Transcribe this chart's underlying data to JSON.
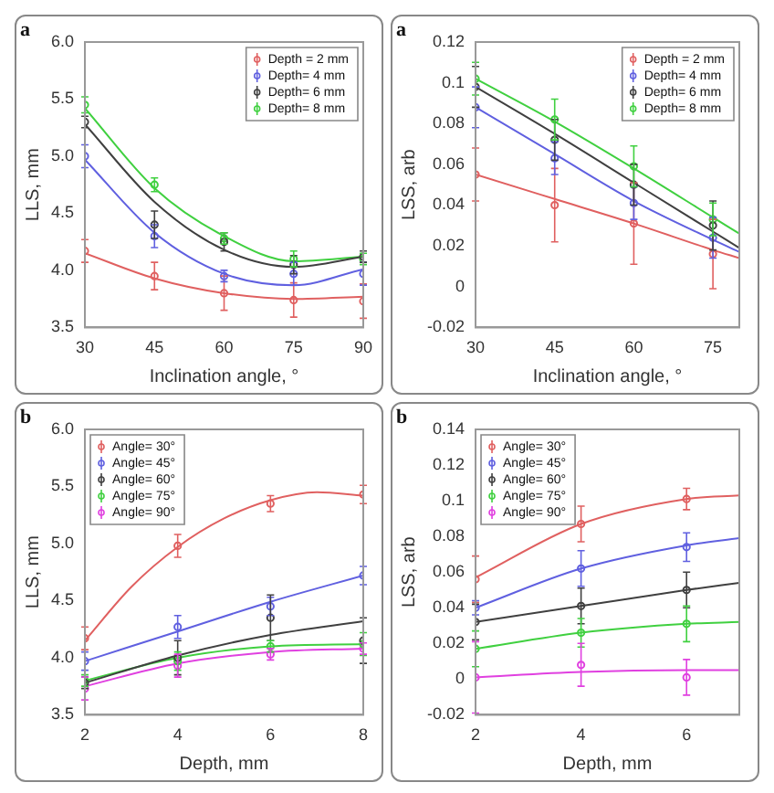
{
  "chart_data": [
    {
      "type": "scatter",
      "title": "a",
      "xlabel": "Inclination angle, °",
      "ylabel": "LLS, mm",
      "x": [
        30,
        45,
        60,
        75,
        90
      ],
      "xlim": [
        30,
        90
      ],
      "xticks": [
        30,
        45,
        60,
        75,
        90
      ],
      "ylim": [
        3.5,
        6.0
      ],
      "yticks": [
        {
          "value": 3.5,
          "label": "3.5"
        },
        {
          "value": 4,
          "label": "4.0"
        },
        {
          "value": 4.5,
          "label": "4.5"
        },
        {
          "value": 5,
          "label": "5.0"
        },
        {
          "value": 5.5,
          "label": "5.5"
        },
        {
          "value": 6,
          "label": "6.0"
        }
      ],
      "legend": "top right",
      "series": [
        {
          "name": "Depth = 2 mm",
          "color": "#e06060",
          "values": [
            4.17,
            3.95,
            3.8,
            3.74,
            3.73
          ],
          "errors": [
            0.1,
            0.12,
            0.15,
            0.15,
            0.15
          ]
        },
        {
          "name": "Depth= 4 mm",
          "color": "#6060e0",
          "values": [
            5.0,
            4.3,
            3.95,
            3.97,
            3.97
          ],
          "errors": [
            0.1,
            0.1,
            0.05,
            0.1,
            0.1
          ]
        },
        {
          "name": "Depth= 6 mm",
          "color": "#404040",
          "values": [
            5.3,
            4.4,
            4.25,
            4.05,
            4.12
          ],
          "errors": [
            0.05,
            0.12,
            0.08,
            0.08,
            0.05
          ]
        },
        {
          "name": "Depth= 8 mm",
          "color": "#40d040",
          "values": [
            5.45,
            4.75,
            4.28,
            4.1,
            4.1
          ],
          "errors": [
            0.07,
            0.06,
            0.05,
            0.07,
            0.05
          ]
        },
        {
          "type": "line",
          "color": "#e06060",
          "x": [
            30,
            45,
            60,
            75,
            90
          ],
          "values": [
            4.15,
            3.93,
            3.8,
            3.75,
            3.77
          ]
        },
        {
          "type": "line",
          "color": "#6060e0",
          "x": [
            30,
            45,
            60,
            75,
            90
          ],
          "values": [
            4.97,
            4.33,
            3.97,
            3.87,
            4.01
          ]
        },
        {
          "type": "line",
          "color": "#404040",
          "x": [
            30,
            45,
            60,
            75,
            90
          ],
          "values": [
            5.28,
            4.6,
            4.18,
            4.03,
            4.12
          ]
        },
        {
          "type": "line",
          "color": "#40d040",
          "x": [
            30,
            45,
            60,
            75,
            90
          ],
          "values": [
            5.42,
            4.72,
            4.3,
            4.08,
            4.12
          ]
        }
      ]
    },
    {
      "type": "scatter",
      "title": "a",
      "xlabel": "Inclination angle, °",
      "ylabel": "LSS, arb",
      "x": [
        30,
        45,
        60,
        75
      ],
      "xlim": [
        30,
        80
      ],
      "xticks": [
        30,
        45,
        60,
        75
      ],
      "ylim": [
        -0.02,
        0.12
      ],
      "yticks": [
        -0.02,
        0,
        0.02,
        0.04,
        0.06,
        0.08,
        0.1,
        0.12
      ],
      "legend": "top right",
      "series": [
        {
          "name": "Depth = 2 mm",
          "color": "#e06060",
          "values": [
            0.055,
            0.04,
            0.031,
            0.016
          ],
          "errors": [
            0.013,
            0.018,
            0.02,
            0.017
          ]
        },
        {
          "name": "Depth= 4 mm",
          "color": "#6060e0",
          "values": [
            0.088,
            0.063,
            0.041,
            0.024
          ],
          "errors": [
            0.01,
            0.008,
            0.008,
            0.01
          ]
        },
        {
          "name": "Depth= 6 mm",
          "color": "#404040",
          "values": [
            0.098,
            0.072,
            0.05,
            0.03
          ],
          "errors": [
            0.01,
            0.01,
            0.01,
            0.012
          ]
        },
        {
          "name": "Depth= 8 mm",
          "color": "#40d040",
          "values": [
            0.102,
            0.082,
            0.059,
            0.033
          ],
          "errors": [
            0.008,
            0.01,
            0.01,
            0.008
          ]
        },
        {
          "type": "line",
          "color": "#e06060",
          "x": [
            30,
            45,
            60,
            75,
            80
          ],
          "values": [
            0.055,
            0.043,
            0.031,
            0.018,
            0.014
          ]
        },
        {
          "type": "line",
          "color": "#6060e0",
          "x": [
            30,
            45,
            60,
            75,
            80
          ],
          "values": [
            0.088,
            0.065,
            0.042,
            0.023,
            0.017
          ]
        },
        {
          "type": "line",
          "color": "#404040",
          "x": [
            30,
            45,
            60,
            75,
            80
          ],
          "values": [
            0.098,
            0.075,
            0.051,
            0.027,
            0.019
          ]
        },
        {
          "type": "line",
          "color": "#40d040",
          "x": [
            30,
            45,
            60,
            75,
            80
          ],
          "values": [
            0.102,
            0.081,
            0.058,
            0.034,
            0.026
          ]
        }
      ]
    },
    {
      "type": "scatter",
      "title": "b",
      "xlabel": "Depth, mm",
      "ylabel": "LLS, mm",
      "x": [
        2,
        4,
        6,
        8
      ],
      "xlim": [
        2,
        8
      ],
      "xticks": [
        2,
        4,
        6,
        8
      ],
      "ylim": [
        3.5,
        6.0
      ],
      "yticks": [
        {
          "value": 3.5,
          "label": "3.5"
        },
        {
          "value": 4,
          "label": "4.0"
        },
        {
          "value": 4.5,
          "label": "4.5"
        },
        {
          "value": 5,
          "label": "5.0"
        },
        {
          "value": 5.5,
          "label": "5.5"
        },
        {
          "value": 6,
          "label": "6.0"
        }
      ],
      "legend": "top left",
      "series": [
        {
          "name": "Angle= 30°",
          "color": "#e06060",
          "values": [
            4.17,
            4.98,
            5.35,
            5.43
          ],
          "errors": [
            0.1,
            0.1,
            0.07,
            0.08
          ]
        },
        {
          "name": "Angle= 45°",
          "color": "#6060e0",
          "values": [
            3.97,
            4.27,
            4.45,
            4.72
          ],
          "errors": [
            0.08,
            0.1,
            0.08,
            0.08
          ]
        },
        {
          "name": "Angle= 60°",
          "color": "#404040",
          "values": [
            3.78,
            4.0,
            4.35,
            4.15
          ],
          "errors": [
            0.05,
            0.15,
            0.2,
            0.2
          ]
        },
        {
          "name": "Angle= 75°",
          "color": "#40d040",
          "values": [
            3.8,
            3.97,
            4.1,
            4.12
          ],
          "errors": [
            0.05,
            0.08,
            0.05,
            0.1
          ]
        },
        {
          "name": "Angle= 90°",
          "color": "#e040e0",
          "values": [
            3.73,
            3.93,
            4.03,
            4.08
          ],
          "errors": [
            0.1,
            0.1,
            0.05,
            0.05
          ]
        },
        {
          "type": "line",
          "color": "#e06060",
          "x": [
            2,
            3,
            4,
            5,
            6,
            7,
            8
          ],
          "values": [
            4.15,
            4.62,
            4.97,
            5.22,
            5.38,
            5.45,
            5.42
          ]
        },
        {
          "type": "line",
          "color": "#6060e0",
          "x": [
            2,
            4,
            6,
            8
          ],
          "values": [
            3.97,
            4.23,
            4.49,
            4.72
          ]
        },
        {
          "type": "line",
          "color": "#404040",
          "x": [
            2,
            4,
            6,
            8
          ],
          "values": [
            3.78,
            4.02,
            4.2,
            4.32
          ]
        },
        {
          "type": "line",
          "color": "#40d040",
          "x": [
            2,
            4,
            6,
            8
          ],
          "values": [
            3.8,
            4.0,
            4.1,
            4.12
          ]
        },
        {
          "type": "line",
          "color": "#e040e0",
          "x": [
            2,
            4,
            6,
            8
          ],
          "values": [
            3.75,
            3.95,
            4.05,
            4.08
          ]
        }
      ]
    },
    {
      "type": "scatter",
      "title": "b",
      "xlabel": "Depth, mm",
      "ylabel": "LSS, arb",
      "x": [
        2,
        4,
        6
      ],
      "xlim": [
        2,
        7
      ],
      "xticks": [
        2,
        4,
        6
      ],
      "ylim": [
        -0.02,
        0.14
      ],
      "yticks": [
        -0.02,
        0,
        0.02,
        0.04,
        0.06,
        0.08,
        0.1,
        0.12,
        0.14
      ],
      "legend": "top left",
      "series": [
        {
          "name": "Angle= 30°",
          "color": "#e06060",
          "values": [
            0.056,
            0.087,
            0.101
          ],
          "errors": [
            0.013,
            0.01,
            0.006
          ]
        },
        {
          "name": "Angle= 45°",
          "color": "#6060e0",
          "values": [
            0.04,
            0.062,
            0.074
          ],
          "errors": [
            0.004,
            0.01,
            0.008
          ]
        },
        {
          "name": "Angle= 60°",
          "color": "#404040",
          "values": [
            0.032,
            0.041,
            0.05
          ],
          "errors": [
            0.01,
            0.01,
            0.01
          ]
        },
        {
          "name": "Angle= 75°",
          "color": "#40d040",
          "values": [
            0.017,
            0.026,
            0.031
          ],
          "errors": [
            0.01,
            0.008,
            0.01
          ]
        },
        {
          "name": "Angle= 90°",
          "color": "#e040e0",
          "values": [
            0.001,
            0.008,
            0.001
          ],
          "errors": [
            0.02,
            0.012,
            0.01
          ]
        },
        {
          "type": "line",
          "color": "#e06060",
          "x": [
            2,
            4,
            6,
            7
          ],
          "values": [
            0.057,
            0.087,
            0.101,
            0.103
          ]
        },
        {
          "type": "line",
          "color": "#6060e0",
          "x": [
            2,
            4,
            6,
            7
          ],
          "values": [
            0.04,
            0.062,
            0.075,
            0.079
          ]
        },
        {
          "type": "line",
          "color": "#404040",
          "x": [
            2,
            4,
            6,
            7
          ],
          "values": [
            0.032,
            0.041,
            0.05,
            0.054
          ]
        },
        {
          "type": "line",
          "color": "#40d040",
          "x": [
            2,
            4,
            6,
            7
          ],
          "values": [
            0.017,
            0.026,
            0.031,
            0.032
          ]
        },
        {
          "type": "line",
          "color": "#e040e0",
          "x": [
            2,
            4,
            6,
            7
          ],
          "values": [
            0.001,
            0.004,
            0.005,
            0.005
          ]
        }
      ]
    }
  ]
}
